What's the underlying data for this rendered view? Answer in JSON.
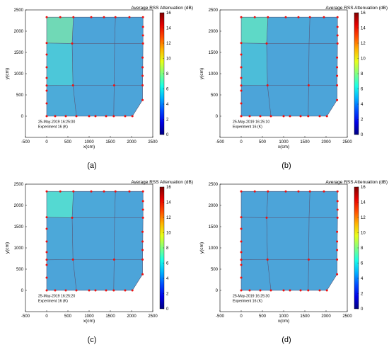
{
  "chart_data": [
    {
      "type": "heatmap",
      "panel_label": "(a)",
      "title": "Average RSS Attenuation (dB)",
      "xlabel": "x(cm)",
      "ylabel": "y(cm)",
      "xlim": [
        -500,
        2500
      ],
      "ylim": [
        -500,
        2500
      ],
      "xticks": [
        -500,
        0,
        500,
        1000,
        1500,
        2000,
        2500
      ],
      "yticks": [
        0,
        500,
        1000,
        1500,
        2000,
        2500
      ],
      "colorbar_range": [
        0,
        16
      ],
      "colorbar_ticks": [
        0,
        2,
        4,
        6,
        8,
        10,
        12,
        14,
        16
      ],
      "annotation_lines": [
        "25-May-2019 16:25:00",
        "Experiment 16 (K)"
      ],
      "cell_values": [
        [
          7.0,
          4.5,
          4.5
        ],
        [
          5.5,
          4.6,
          4.5
        ],
        [
          4.7,
          4.5,
          4.5
        ]
      ]
    },
    {
      "type": "heatmap",
      "panel_label": "(b)",
      "title": "Average RSS Attenuation (dB)",
      "xlabel": "x(cm)",
      "ylabel": "y(cm)",
      "xlim": [
        -500,
        2500
      ],
      "ylim": [
        -500,
        2500
      ],
      "xticks": [
        -500,
        0,
        500,
        1000,
        1500,
        2000,
        2500
      ],
      "yticks": [
        0,
        500,
        1000,
        1500,
        2000,
        2500
      ],
      "colorbar_range": [
        0,
        16
      ],
      "colorbar_ticks": [
        0,
        2,
        4,
        6,
        8,
        10,
        12,
        14,
        16
      ],
      "annotation_lines": [
        "25-May-2019 16:25:10",
        "Experiment 16 (K)"
      ],
      "cell_values": [
        [
          6.5,
          4.6,
          4.5
        ],
        [
          5.2,
          4.5,
          4.5
        ],
        [
          4.5,
          4.5,
          4.5
        ]
      ]
    },
    {
      "type": "heatmap",
      "panel_label": "(c)",
      "title": "Average RSS Attenuation (dB)",
      "xlabel": "x(cm)",
      "ylabel": "y(cm)",
      "xlim": [
        -500,
        2500
      ],
      "ylim": [
        -500,
        2500
      ],
      "xticks": [
        -500,
        0,
        500,
        1000,
        1500,
        2000,
        2500
      ],
      "yticks": [
        0,
        500,
        1000,
        1500,
        2000,
        2500
      ],
      "colorbar_range": [
        0,
        16
      ],
      "colorbar_ticks": [
        0,
        2,
        4,
        6,
        8,
        10,
        12,
        14,
        16
      ],
      "annotation_lines": [
        "25-May-2019 16:25:20",
        "Experiment 16 (K)"
      ],
      "cell_values": [
        [
          6.2,
          4.6,
          4.5
        ],
        [
          4.6,
          4.5,
          4.5
        ],
        [
          4.5,
          4.5,
          4.5
        ]
      ]
    },
    {
      "type": "heatmap",
      "panel_label": "(d)",
      "title": "Average RSS Attenuation (dB)",
      "xlabel": "x(cm)",
      "ylabel": "y(cm)",
      "xlim": [
        -500,
        2500
      ],
      "ylim": [
        -500,
        2500
      ],
      "xticks": [
        -500,
        0,
        500,
        1000,
        1500,
        2000,
        2500
      ],
      "yticks": [
        0,
        500,
        1000,
        1500,
        2000,
        2500
      ],
      "colorbar_range": [
        0,
        16
      ],
      "colorbar_ticks": [
        0,
        2,
        4,
        6,
        8,
        10,
        12,
        14,
        16
      ],
      "annotation_lines": [
        "25-May-2019 16:25:30",
        "Experiment 16 (K)"
      ],
      "cell_values": [
        [
          4.5,
          4.5,
          4.5
        ],
        [
          4.5,
          4.5,
          4.5
        ],
        [
          4.5,
          4.5,
          4.5
        ]
      ]
    }
  ],
  "scene": {
    "column_boundaries": [
      [
        [
          0,
          0
        ],
        [
          0,
          2330
        ]
      ],
      [
        [
          700,
          0
        ],
        [
          620,
          725
        ],
        [
          600,
          1710
        ],
        [
          630,
          2330
        ]
      ],
      [
        [
          1580,
          0
        ],
        [
          1590,
          725
        ],
        [
          1600,
          1710
        ],
        [
          1620,
          2330
        ]
      ],
      [
        [
          2020,
          0
        ],
        [
          2260,
          380
        ],
        [
          2260,
          725
        ],
        [
          2270,
          1710
        ],
        [
          2270,
          2330
        ]
      ]
    ],
    "row_boundaries": [
      [
        [
          0,
          0
        ],
        [
          700,
          0
        ],
        [
          1580,
          0
        ],
        [
          2020,
          0
        ]
      ],
      [
        [
          0,
          720
        ],
        [
          620,
          725
        ],
        [
          1590,
          725
        ],
        [
          2260,
          725
        ]
      ],
      [
        [
          0,
          1720
        ],
        [
          600,
          1710
        ],
        [
          1600,
          1710
        ],
        [
          2270,
          1710
        ]
      ],
      [
        [
          0,
          2330
        ],
        [
          630,
          2330
        ],
        [
          1620,
          2330
        ],
        [
          2270,
          2330
        ]
      ]
    ],
    "sensor_points": [
      [
        0,
        0
      ],
      [
        200,
        0
      ],
      [
        450,
        0
      ],
      [
        700,
        0
      ],
      [
        1000,
        0
      ],
      [
        1150,
        0
      ],
      [
        1400,
        0
      ],
      [
        1580,
        0
      ],
      [
        1850,
        0
      ],
      [
        2020,
        0
      ],
      [
        0,
        300
      ],
      [
        0,
        600
      ],
      [
        0,
        720
      ],
      [
        0,
        900
      ],
      [
        0,
        1150
      ],
      [
        0,
        1450
      ],
      [
        0,
        1720
      ],
      [
        0,
        2330
      ],
      [
        620,
        725
      ],
      [
        600,
        1710
      ],
      [
        1590,
        725
      ],
      [
        320,
        2330
      ],
      [
        630,
        2330
      ],
      [
        1050,
        2330
      ],
      [
        1350,
        2330
      ],
      [
        1620,
        2330
      ],
      [
        1950,
        2330
      ],
      [
        2270,
        2330
      ],
      [
        2260,
        380
      ],
      [
        2260,
        725
      ],
      [
        2260,
        950
      ],
      [
        2260,
        1150
      ],
      [
        2260,
        1380
      ],
      [
        2270,
        1710
      ],
      [
        2270,
        1900
      ],
      [
        2270,
        2100
      ]
    ]
  }
}
